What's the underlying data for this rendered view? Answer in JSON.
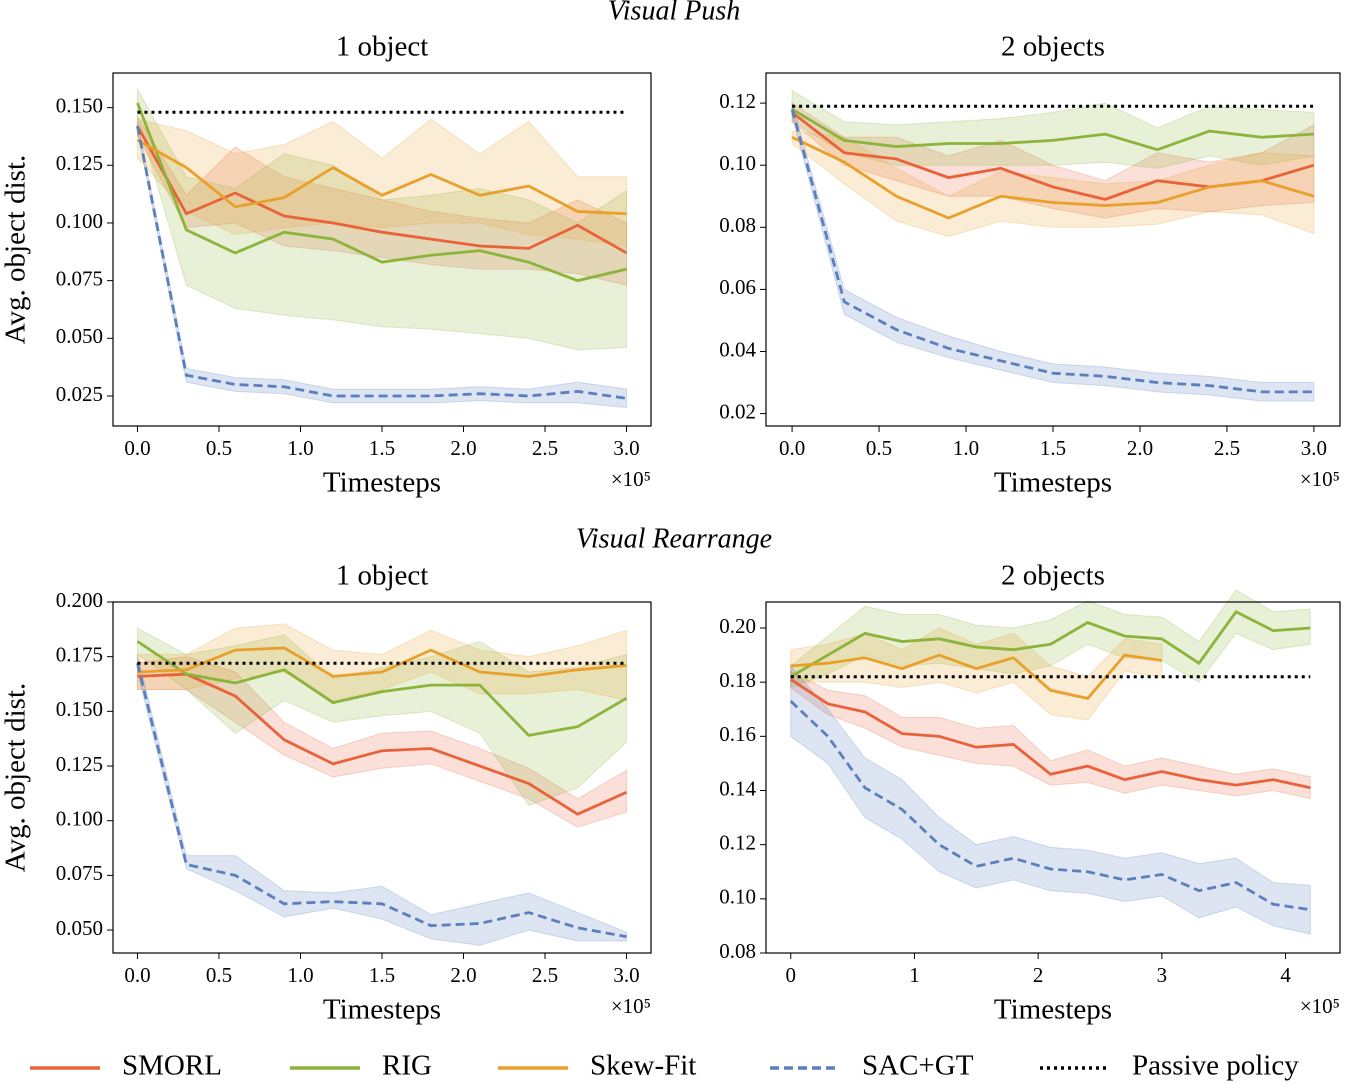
{
  "row_titles": [
    "Visual Push",
    "Visual Rearrange"
  ],
  "chart_data": [
    {
      "type": "line",
      "title": "1 object",
      "ylabel": "Avg. object dist.",
      "xlabel": "Timesteps",
      "x_multiplier": "×10⁵",
      "x": [
        0,
        0.3,
        0.6,
        0.9,
        1.2,
        1.5,
        1.8,
        2.1,
        2.4,
        2.7,
        3.0
      ],
      "xlim": [
        -0.15,
        3.15
      ],
      "xticks": [
        {
          "value": 0,
          "label": "0.0"
        },
        0.5,
        {
          "value": 1,
          "label": "1.0"
        },
        1.5,
        {
          "value": 2,
          "label": "2.0"
        },
        2.5,
        {
          "value": 3,
          "label": "3.0"
        }
      ],
      "ylim": [
        0.012,
        0.165
      ],
      "yticks": [
        0.025,
        {
          "value": 0.05,
          "label": "0.050"
        },
        0.075,
        {
          "value": 0.1,
          "label": "0.100"
        },
        0.125,
        {
          "value": 0.15,
          "label": "0.150"
        }
      ],
      "series": [
        {
          "name": "SMORL",
          "color": "#e8623a",
          "style": "solid",
          "values": [
            0.142,
            0.104,
            0.113,
            0.103,
            0.1,
            0.096,
            0.093,
            0.09,
            0.089,
            0.099,
            0.087
          ],
          "lower": [
            0.138,
            0.098,
            0.1,
            0.09,
            0.088,
            0.085,
            0.082,
            0.08,
            0.08,
            0.078,
            0.073
          ],
          "upper": [
            0.146,
            0.112,
            0.133,
            0.12,
            0.115,
            0.11,
            0.105,
            0.102,
            0.1,
            0.11,
            0.1
          ]
        },
        {
          "name": "RIG",
          "color": "#8cb33a",
          "style": "solid",
          "values": [
            0.152,
            0.097,
            0.087,
            0.096,
            0.093,
            0.083,
            0.086,
            0.088,
            0.083,
            0.075,
            0.08
          ],
          "lower": [
            0.146,
            0.073,
            0.063,
            0.06,
            0.058,
            0.055,
            0.054,
            0.052,
            0.05,
            0.045,
            0.046
          ],
          "upper": [
            0.158,
            0.12,
            0.115,
            0.13,
            0.125,
            0.11,
            0.112,
            0.115,
            0.11,
            0.1,
            0.114
          ]
        },
        {
          "name": "Skew-Fit",
          "color": "#e9a02b",
          "style": "solid",
          "values": [
            0.136,
            0.124,
            0.107,
            0.111,
            0.124,
            0.112,
            0.121,
            0.112,
            0.116,
            0.105,
            0.104
          ],
          "lower": [
            0.128,
            0.105,
            0.095,
            0.098,
            0.1,
            0.098,
            0.1,
            0.1,
            0.095,
            0.093,
            0.09
          ],
          "upper": [
            0.145,
            0.14,
            0.13,
            0.134,
            0.144,
            0.128,
            0.145,
            0.13,
            0.144,
            0.12,
            0.12
          ]
        },
        {
          "name": "SAC+GT",
          "color": "#5b7fbe",
          "style": "dashed",
          "values": [
            0.142,
            0.034,
            0.03,
            0.029,
            0.025,
            0.025,
            0.025,
            0.026,
            0.025,
            0.027,
            0.024
          ],
          "lower": [
            0.14,
            0.031,
            0.027,
            0.026,
            0.022,
            0.022,
            0.022,
            0.023,
            0.022,
            0.022,
            0.02
          ],
          "upper": [
            0.144,
            0.037,
            0.033,
            0.032,
            0.028,
            0.028,
            0.028,
            0.029,
            0.028,
            0.031,
            0.028
          ]
        },
        {
          "name": "Passive policy",
          "color": "#000000",
          "style": "dotted",
          "values": [
            0.148,
            0.148,
            0.148,
            0.148,
            0.148,
            0.148,
            0.148,
            0.148,
            0.148,
            0.148,
            0.148
          ]
        }
      ]
    },
    {
      "type": "line",
      "title": "2 objects",
      "xlabel": "Timesteps",
      "x_multiplier": "×10⁵",
      "x": [
        0,
        0.3,
        0.6,
        0.9,
        1.2,
        1.5,
        1.8,
        2.1,
        2.4,
        2.7,
        3.0
      ],
      "xlim": [
        -0.15,
        3.15
      ],
      "xticks": [
        {
          "value": 0,
          "label": "0.0"
        },
        0.5,
        {
          "value": 1,
          "label": "1.0"
        },
        1.5,
        {
          "value": 2,
          "label": "2.0"
        },
        2.5,
        {
          "value": 3,
          "label": "3.0"
        }
      ],
      "ylim": [
        0.016,
        0.1297
      ],
      "yticks": [
        0.02,
        0.04,
        0.06,
        0.08,
        {
          "value": 0.1,
          "label": "0.10"
        },
        0.12
      ],
      "series": [
        {
          "name": "SMORL",
          "color": "#e8623a",
          "style": "solid",
          "values": [
            0.117,
            0.104,
            0.102,
            0.096,
            0.099,
            0.093,
            0.089,
            0.095,
            0.093,
            0.095,
            0.1
          ],
          "lower": [
            0.114,
            0.1,
            0.095,
            0.09,
            0.09,
            0.086,
            0.083,
            0.086,
            0.085,
            0.087,
            0.088
          ],
          "upper": [
            0.12,
            0.109,
            0.109,
            0.103,
            0.108,
            0.1,
            0.095,
            0.104,
            0.101,
            0.104,
            0.113
          ]
        },
        {
          "name": "RIG",
          "color": "#8cb33a",
          "style": "solid",
          "values": [
            0.118,
            0.108,
            0.106,
            0.107,
            0.107,
            0.108,
            0.11,
            0.105,
            0.111,
            0.109,
            0.11
          ],
          "lower": [
            0.114,
            0.104,
            0.1,
            0.1,
            0.1,
            0.1,
            0.101,
            0.099,
            0.103,
            0.1,
            0.103
          ],
          "upper": [
            0.124,
            0.114,
            0.113,
            0.114,
            0.115,
            0.117,
            0.12,
            0.112,
            0.119,
            0.118,
            0.117
          ]
        },
        {
          "name": "Skew-Fit",
          "color": "#e9a02b",
          "style": "solid",
          "values": [
            0.109,
            0.101,
            0.09,
            0.083,
            0.09,
            0.088,
            0.087,
            0.088,
            0.093,
            0.095,
            0.09
          ],
          "lower": [
            0.107,
            0.094,
            0.082,
            0.077,
            0.082,
            0.08,
            0.08,
            0.081,
            0.085,
            0.084,
            0.078
          ],
          "upper": [
            0.111,
            0.109,
            0.099,
            0.09,
            0.098,
            0.096,
            0.094,
            0.095,
            0.1,
            0.104,
            0.103
          ]
        },
        {
          "name": "SAC+GT",
          "color": "#5b7fbe",
          "style": "dashed",
          "values": [
            0.118,
            0.056,
            0.047,
            0.041,
            0.037,
            0.033,
            0.032,
            0.03,
            0.029,
            0.027,
            0.027
          ],
          "lower": [
            0.116,
            0.052,
            0.043,
            0.038,
            0.034,
            0.03,
            0.029,
            0.027,
            0.026,
            0.024,
            0.024
          ],
          "upper": [
            0.12,
            0.06,
            0.051,
            0.045,
            0.04,
            0.036,
            0.035,
            0.033,
            0.032,
            0.03,
            0.03
          ]
        },
        {
          "name": "Passive policy",
          "color": "#000000",
          "style": "dotted",
          "values": [
            0.119,
            0.119,
            0.119,
            0.119,
            0.119,
            0.119,
            0.119,
            0.119,
            0.119,
            0.119,
            0.119
          ]
        }
      ]
    },
    {
      "type": "line",
      "title": "1 object",
      "ylabel": "Avg. object dist.",
      "xlabel": "Timesteps",
      "x_multiplier": "×10⁵",
      "x": [
        0,
        0.3,
        0.6,
        0.9,
        1.2,
        1.5,
        1.8,
        2.1,
        2.4,
        2.7,
        3.0
      ],
      "xlim": [
        -0.15,
        3.15
      ],
      "xticks": [
        {
          "value": 0,
          "label": "0.0"
        },
        0.5,
        {
          "value": 1,
          "label": "1.0"
        },
        1.5,
        {
          "value": 2,
          "label": "2.0"
        },
        2.5,
        {
          "value": 3,
          "label": "3.0"
        }
      ],
      "ylim": [
        0.0395,
        0.2
      ],
      "yticks": [
        {
          "value": 0.05,
          "label": "0.050"
        },
        0.075,
        {
          "value": 0.1,
          "label": "0.100"
        },
        0.125,
        {
          "value": 0.15,
          "label": "0.150"
        },
        0.175,
        {
          "value": 0.2,
          "label": "0.200"
        }
      ],
      "series": [
        {
          "name": "SMORL",
          "color": "#e8623a",
          "style": "solid",
          "values": [
            0.166,
            0.167,
            0.157,
            0.137,
            0.126,
            0.132,
            0.133,
            0.125,
            0.117,
            0.103,
            0.113
          ],
          "lower": [
            0.16,
            0.16,
            0.145,
            0.13,
            0.12,
            0.124,
            0.126,
            0.118,
            0.11,
            0.097,
            0.104
          ],
          "upper": [
            0.172,
            0.175,
            0.168,
            0.145,
            0.133,
            0.14,
            0.141,
            0.133,
            0.124,
            0.11,
            0.123
          ]
        },
        {
          "name": "RIG",
          "color": "#8cb33a",
          "style": "solid",
          "values": [
            0.182,
            0.167,
            0.163,
            0.169,
            0.154,
            0.159,
            0.162,
            0.162,
            0.139,
            0.143,
            0.156
          ],
          "lower": [
            0.176,
            0.16,
            0.14,
            0.155,
            0.145,
            0.148,
            0.15,
            0.14,
            0.107,
            0.115,
            0.136
          ],
          "upper": [
            0.188,
            0.176,
            0.18,
            0.185,
            0.165,
            0.17,
            0.175,
            0.182,
            0.168,
            0.17,
            0.176
          ]
        },
        {
          "name": "Skew-Fit",
          "color": "#e9a02b",
          "style": "solid",
          "values": [
            0.168,
            0.169,
            0.178,
            0.179,
            0.166,
            0.168,
            0.178,
            0.168,
            0.166,
            0.169,
            0.171
          ],
          "lower": [
            0.16,
            0.16,
            0.165,
            0.168,
            0.155,
            0.16,
            0.168,
            0.158,
            0.158,
            0.16,
            0.155
          ],
          "upper": [
            0.176,
            0.176,
            0.188,
            0.19,
            0.178,
            0.176,
            0.187,
            0.178,
            0.175,
            0.18,
            0.187
          ]
        },
        {
          "name": "SAC+GT",
          "color": "#5b7fbe",
          "style": "dashed",
          "values": [
            0.172,
            0.08,
            0.075,
            0.062,
            0.063,
            0.062,
            0.052,
            0.053,
            0.058,
            0.051,
            0.047
          ],
          "lower": [
            0.168,
            0.078,
            0.068,
            0.056,
            0.06,
            0.055,
            0.046,
            0.043,
            0.05,
            0.045,
            0.045
          ],
          "upper": [
            0.176,
            0.084,
            0.084,
            0.068,
            0.067,
            0.07,
            0.057,
            0.062,
            0.067,
            0.058,
            0.049
          ]
        },
        {
          "name": "Passive policy",
          "color": "#000000",
          "style": "dotted",
          "values": [
            0.172,
            0.172,
            0.172,
            0.172,
            0.172,
            0.172,
            0.172,
            0.172,
            0.172,
            0.172,
            0.172
          ]
        }
      ]
    },
    {
      "type": "line",
      "title": "2 objects",
      "xlabel": "Timesteps",
      "x_multiplier": "×10⁵",
      "x": [
        0,
        0.3,
        0.6,
        0.9,
        1.2,
        1.5,
        1.8,
        2.1,
        2.4,
        2.7,
        3.0,
        3.3,
        3.6,
        3.9,
        4.2
      ],
      "xlim": [
        -0.2,
        4.44
      ],
      "xticks": [
        0,
        1,
        2,
        3,
        4
      ],
      "ylim": [
        0.08,
        0.2096
      ],
      "yticks": [
        0.08,
        {
          "value": 0.1,
          "label": "0.10"
        },
        0.12,
        0.14,
        0.16,
        0.18,
        {
          "value": 0.2,
          "label": "0.20"
        }
      ],
      "series": [
        {
          "name": "SMORL",
          "color": "#e8623a",
          "style": "solid",
          "values": [
            0.181,
            0.172,
            0.169,
            0.161,
            0.16,
            0.156,
            0.157,
            0.146,
            0.149,
            0.144,
            0.147,
            0.144,
            0.142,
            0.144,
            0.141
          ],
          "lower": [
            0.178,
            0.168,
            0.163,
            0.156,
            0.153,
            0.15,
            0.149,
            0.142,
            0.143,
            0.139,
            0.142,
            0.14,
            0.138,
            0.14,
            0.137
          ],
          "upper": [
            0.184,
            0.177,
            0.175,
            0.167,
            0.167,
            0.163,
            0.164,
            0.151,
            0.155,
            0.149,
            0.152,
            0.149,
            0.146,
            0.148,
            0.145
          ]
        },
        {
          "name": "RIG",
          "color": "#8cb33a",
          "style": "solid",
          "values": [
            0.182,
            0.19,
            0.198,
            0.195,
            0.196,
            0.193,
            0.192,
            0.194,
            0.202,
            0.197,
            0.196,
            0.187,
            0.206,
            0.199,
            0.2
          ],
          "lower": [
            0.178,
            0.183,
            0.19,
            0.186,
            0.187,
            0.185,
            0.183,
            0.186,
            0.194,
            0.189,
            0.188,
            0.18,
            0.198,
            0.192,
            0.194
          ],
          "upper": [
            0.186,
            0.197,
            0.208,
            0.205,
            0.205,
            0.201,
            0.2,
            0.203,
            0.21,
            0.205,
            0.204,
            0.195,
            0.214,
            0.206,
            0.207
          ]
        },
        {
          "name": "Skew-Fit",
          "color": "#e9a02b",
          "style": "solid",
          "values": [
            0.186,
            0.187,
            0.189,
            0.185,
            0.19,
            0.185,
            0.189,
            0.177,
            0.174,
            0.19,
            0.188,
            null,
            null,
            null,
            null
          ],
          "lower": [
            0.18,
            0.18,
            0.18,
            0.178,
            0.18,
            0.176,
            0.18,
            0.168,
            0.166,
            0.184,
            0.182,
            null,
            null,
            null,
            null
          ],
          "upper": [
            0.192,
            0.194,
            0.198,
            0.192,
            0.2,
            0.194,
            0.198,
            0.186,
            0.182,
            0.196,
            0.194,
            null,
            null,
            null,
            null
          ]
        },
        {
          "name": "SAC+GT",
          "color": "#5b7fbe",
          "style": "dashed",
          "values": [
            0.173,
            0.16,
            0.141,
            0.133,
            0.12,
            0.112,
            0.115,
            0.111,
            0.11,
            0.107,
            0.109,
            0.103,
            0.106,
            0.098,
            0.096
          ],
          "lower": [
            0.16,
            0.15,
            0.13,
            0.122,
            0.11,
            0.104,
            0.107,
            0.103,
            0.102,
            0.099,
            0.101,
            0.093,
            0.097,
            0.09,
            0.087
          ],
          "upper": [
            0.186,
            0.17,
            0.152,
            0.144,
            0.13,
            0.12,
            0.123,
            0.119,
            0.118,
            0.115,
            0.117,
            0.113,
            0.115,
            0.106,
            0.105
          ]
        },
        {
          "name": "Passive policy",
          "color": "#000000",
          "style": "dotted",
          "values": [
            0.182,
            0.182,
            0.182,
            0.182,
            0.182,
            0.182,
            0.182,
            0.182,
            0.182,
            0.182,
            0.182,
            0.182,
            0.182,
            0.182,
            0.182
          ]
        }
      ]
    }
  ]
}
